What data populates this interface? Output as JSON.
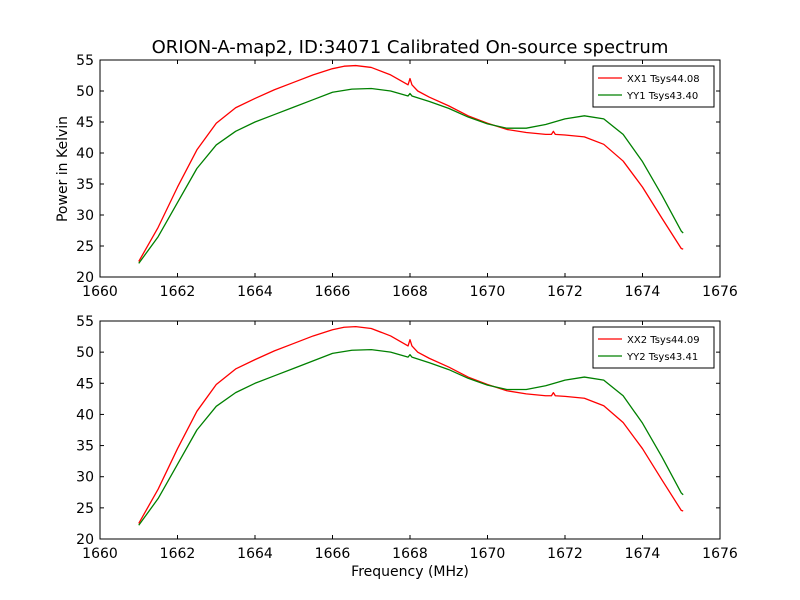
{
  "chart_data": [
    {
      "type": "line",
      "title": "ORION-A-map2, ID:34071 Calibrated On-source spectrum",
      "xlabel": "",
      "ylabel": "Power in Kelvin",
      "xlim": [
        1660,
        1676
      ],
      "ylim": [
        20,
        55
      ],
      "xticks": [
        "1660",
        "1662",
        "1664",
        "1666",
        "1668",
        "1670",
        "1672",
        "1674",
        "1676"
      ],
      "yticks": [
        "20",
        "25",
        "30",
        "35",
        "40",
        "45",
        "50",
        "55"
      ],
      "legend_position": "top-right",
      "series": [
        {
          "name": "XX1 Tsys44.08",
          "color": "#ff0000",
          "x": [
            1661.0,
            1661.5,
            1662.0,
            1662.5,
            1663.0,
            1663.5,
            1664.0,
            1664.5,
            1665.0,
            1665.5,
            1666.0,
            1666.3,
            1666.6,
            1667.0,
            1667.5,
            1667.95,
            1668.0,
            1668.05,
            1668.2,
            1668.5,
            1669.0,
            1669.5,
            1670.0,
            1670.5,
            1671.0,
            1671.5,
            1671.65,
            1671.7,
            1671.75,
            1672.0,
            1672.5,
            1673.0,
            1673.5,
            1674.0,
            1674.5,
            1675.0,
            1675.05
          ],
          "y": [
            22.5,
            28.0,
            34.5,
            40.5,
            44.8,
            47.3,
            48.8,
            50.2,
            51.4,
            52.6,
            53.6,
            54.0,
            54.1,
            53.8,
            52.6,
            51.0,
            52.0,
            51.0,
            50.0,
            49.0,
            47.6,
            46.0,
            44.8,
            43.8,
            43.3,
            43.0,
            43.0,
            43.5,
            43.0,
            42.9,
            42.6,
            41.4,
            38.7,
            34.5,
            29.5,
            24.6,
            24.5
          ]
        },
        {
          "name": "YY1 Tsys43.40",
          "color": "#008000",
          "x": [
            1661.0,
            1661.5,
            1662.0,
            1662.5,
            1663.0,
            1663.5,
            1664.0,
            1664.5,
            1665.0,
            1665.5,
            1666.0,
            1666.5,
            1667.0,
            1667.5,
            1667.95,
            1668.0,
            1668.05,
            1668.5,
            1669.0,
            1669.5,
            1670.0,
            1670.5,
            1671.0,
            1671.5,
            1672.0,
            1672.5,
            1673.0,
            1673.5,
            1674.0,
            1674.5,
            1675.0,
            1675.05
          ],
          "y": [
            22.2,
            26.5,
            32.0,
            37.5,
            41.3,
            43.5,
            45.0,
            46.2,
            47.4,
            48.6,
            49.8,
            50.3,
            50.4,
            50.0,
            49.2,
            49.6,
            49.2,
            48.3,
            47.2,
            45.8,
            44.7,
            44.0,
            44.0,
            44.6,
            45.5,
            46.0,
            45.5,
            43.0,
            38.6,
            33.2,
            27.4,
            27.1
          ]
        }
      ]
    },
    {
      "type": "line",
      "title": "",
      "xlabel": "Frequency (MHz)",
      "ylabel": "",
      "xlim": [
        1660,
        1676
      ],
      "ylim": [
        20,
        55
      ],
      "xticks": [
        "1660",
        "1662",
        "1664",
        "1666",
        "1668",
        "1670",
        "1672",
        "1674",
        "1676"
      ],
      "yticks": [
        "20",
        "25",
        "30",
        "35",
        "40",
        "45",
        "50",
        "55"
      ],
      "legend_position": "top-right",
      "series": [
        {
          "name": "XX2 Tsys44.09",
          "color": "#ff0000",
          "x": [
            1661.0,
            1661.5,
            1662.0,
            1662.5,
            1663.0,
            1663.5,
            1664.0,
            1664.5,
            1665.0,
            1665.5,
            1666.0,
            1666.3,
            1666.6,
            1667.0,
            1667.5,
            1667.95,
            1668.0,
            1668.05,
            1668.2,
            1668.5,
            1669.0,
            1669.5,
            1670.0,
            1670.5,
            1671.0,
            1671.5,
            1671.65,
            1671.7,
            1671.75,
            1672.0,
            1672.5,
            1673.0,
            1673.5,
            1674.0,
            1674.5,
            1675.0,
            1675.05
          ],
          "y": [
            22.5,
            28.0,
            34.5,
            40.5,
            44.8,
            47.3,
            48.8,
            50.2,
            51.4,
            52.6,
            53.6,
            54.0,
            54.1,
            53.8,
            52.6,
            51.0,
            52.0,
            51.0,
            50.0,
            49.0,
            47.6,
            46.0,
            44.8,
            43.8,
            43.3,
            43.0,
            43.0,
            43.5,
            43.0,
            42.9,
            42.6,
            41.4,
            38.7,
            34.5,
            29.5,
            24.6,
            24.5
          ]
        },
        {
          "name": "YY2 Tsys43.41",
          "color": "#008000",
          "x": [
            1661.0,
            1661.5,
            1662.0,
            1662.5,
            1663.0,
            1663.5,
            1664.0,
            1664.5,
            1665.0,
            1665.5,
            1666.0,
            1666.5,
            1667.0,
            1667.5,
            1667.95,
            1668.0,
            1668.05,
            1668.5,
            1669.0,
            1669.5,
            1670.0,
            1670.5,
            1671.0,
            1671.5,
            1672.0,
            1672.5,
            1673.0,
            1673.5,
            1674.0,
            1674.5,
            1675.0,
            1675.05
          ],
          "y": [
            22.2,
            26.5,
            32.0,
            37.5,
            41.3,
            43.5,
            45.0,
            46.2,
            47.4,
            48.6,
            49.8,
            50.3,
            50.4,
            50.0,
            49.2,
            49.6,
            49.2,
            48.3,
            47.2,
            45.8,
            44.7,
            44.0,
            44.0,
            44.6,
            45.5,
            46.0,
            45.5,
            43.0,
            38.6,
            33.2,
            27.4,
            27.1
          ]
        }
      ]
    }
  ]
}
